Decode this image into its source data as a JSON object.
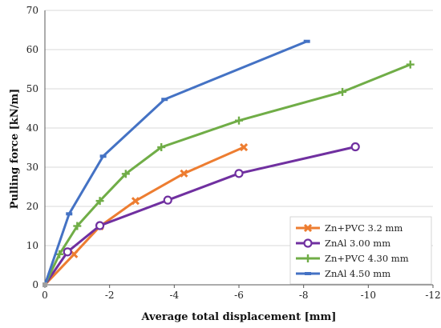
{
  "chart_data": {
    "type": "line",
    "xlabel": "Average total displacement [mm]",
    "ylabel": "Pulling force [kN/m]",
    "xlim": [
      0,
      -12
    ],
    "ylim": [
      0,
      70
    ],
    "x_ticks": [
      "0",
      "-2",
      "-4",
      "-6",
      "-8",
      "-10",
      "-12"
    ],
    "y_ticks": [
      "0",
      "10",
      "20",
      "30",
      "40",
      "50",
      "60",
      "70"
    ],
    "grid": "horizontal",
    "legend_position": "bottom-right",
    "series": [
      {
        "name": "Zn+PVC 3.2 mm",
        "color": "#ED7D31",
        "marker": "x",
        "points": [
          [
            0,
            0
          ],
          [
            -0.9,
            7.8
          ],
          [
            -1.7,
            14.9
          ],
          [
            -2.8,
            21.4
          ],
          [
            -4.3,
            28.4
          ],
          [
            -6.15,
            35.1
          ]
        ]
      },
      {
        "name": "ZnAl 3.00 mm",
        "color": "#7030A0",
        "marker": "circle",
        "points": [
          [
            0,
            0
          ],
          [
            -0.7,
            8.4
          ],
          [
            -1.7,
            15.1
          ],
          [
            -3.8,
            21.6
          ],
          [
            -6.0,
            28.4
          ],
          [
            -9.6,
            35.2
          ]
        ]
      },
      {
        "name": "Zn+PVC 4.30 mm",
        "color": "#70AD47",
        "marker": "plus",
        "points": [
          [
            0,
            0
          ],
          [
            -0.45,
            7.8
          ],
          [
            -1.0,
            15.0
          ],
          [
            -1.7,
            21.4
          ],
          [
            -2.5,
            28.3
          ],
          [
            -3.6,
            35.1
          ],
          [
            -6.0,
            41.9
          ],
          [
            -9.2,
            49.2
          ],
          [
            -11.3,
            56.2
          ]
        ]
      },
      {
        "name": "ZnAl 4.50 mm",
        "color": "#4472C4",
        "marker": "dash",
        "points": [
          [
            0,
            0
          ],
          [
            -0.75,
            18.1
          ],
          [
            -1.8,
            32.8
          ],
          [
            -3.7,
            47.3
          ],
          [
            -8.1,
            62.1
          ]
        ]
      }
    ]
  }
}
